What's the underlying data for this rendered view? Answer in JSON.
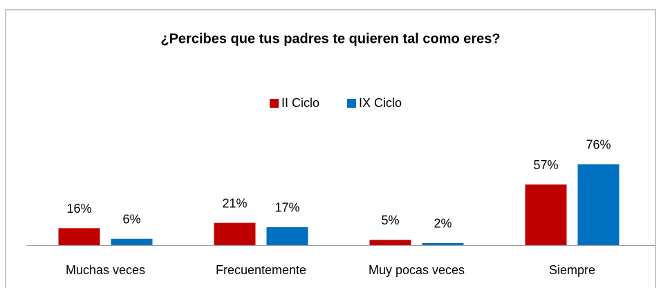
{
  "chart_data": {
    "type": "bar",
    "title": "¿Percibes que tus padres te quieren tal como eres?",
    "categories": [
      "Muchas veces",
      "Frecuentemente",
      "Muy pocas veces",
      "Siempre"
    ],
    "series": [
      {
        "name": "II Ciclo",
        "color": "#c00000",
        "values": [
          16,
          21,
          5,
          57
        ],
        "value_labels": [
          "16%",
          "21%",
          "5%",
          "57%"
        ]
      },
      {
        "name": "IX Ciclo",
        "color": "#0070c0",
        "values": [
          6,
          17,
          2,
          76
        ],
        "value_labels": [
          "6%",
          "17%",
          "2%",
          "76%"
        ]
      }
    ],
    "legend": "top"
  }
}
